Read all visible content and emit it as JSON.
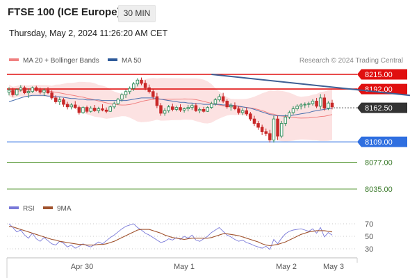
{
  "header": {
    "title": "FTSE 100 (ICE Europe)",
    "timeframe": "30 MIN",
    "datetime": "Thursday, May 2, 2024 11:26:20 AM CET"
  },
  "legend": {
    "items": [
      {
        "label": "MA 20 + Bollinger Bands",
        "color": "#f08080"
      },
      {
        "label": "MA 50",
        "color": "#2e5a9a"
      }
    ],
    "credit": "Research © 2024 Trading Central"
  },
  "rsi_legend": {
    "items": [
      {
        "label": "RSI",
        "color": "#7878d8"
      },
      {
        "label": "9MA",
        "color": "#a0522d"
      }
    ]
  },
  "levels": [
    {
      "value": 8215.0,
      "label": "8215.00",
      "kind": "resistance",
      "color": "#e01010"
    },
    {
      "value": 8192.0,
      "label": "8192.00",
      "kind": "resistance",
      "color": "#e01010"
    },
    {
      "value": 8162.5,
      "label": "8162.50",
      "kind": "current",
      "color": "#333333"
    },
    {
      "value": 8109.0,
      "label": "8109.00",
      "kind": "support",
      "color": "#2f6fe0"
    },
    {
      "value": 8077.0,
      "label": "8077.00",
      "kind": "target",
      "color": "#5a9a3a"
    },
    {
      "value": 8035.0,
      "label": "8035.00",
      "kind": "target",
      "color": "#5a9a3a"
    }
  ],
  "rsi_axis": {
    "ticks": [
      "70",
      "50",
      "30"
    ]
  },
  "x_axis": {
    "labels": [
      "Apr 30",
      "May 1",
      "May 2",
      "May 3"
    ]
  },
  "chart_data": [
    {
      "type": "candlestick",
      "title": "FTSE 100 (ICE Europe)",
      "ylim": [
        8028,
        8228
      ],
      "x_labels": [
        "Apr 30",
        "May 1",
        "May 2",
        "May 3"
      ],
      "ohlc": [
        [
          8187,
          8195,
          8182,
          8190
        ],
        [
          8190,
          8194,
          8180,
          8183
        ],
        [
          8183,
          8193,
          8181,
          8191
        ],
        [
          8191,
          8198,
          8188,
          8194
        ],
        [
          8194,
          8197,
          8184,
          8186
        ],
        [
          8186,
          8193,
          8178,
          8188
        ],
        [
          8188,
          8196,
          8186,
          8194
        ],
        [
          8194,
          8197,
          8188,
          8190
        ],
        [
          8190,
          8194,
          8184,
          8187
        ],
        [
          8187,
          8193,
          8181,
          8190
        ],
        [
          8190,
          8195,
          8184,
          8186
        ],
        [
          8186,
          8190,
          8175,
          8178
        ],
        [
          8178,
          8182,
          8169,
          8172
        ],
        [
          8172,
          8179,
          8167,
          8175
        ],
        [
          8175,
          8178,
          8164,
          8168
        ],
        [
          8168,
          8172,
          8160,
          8164
        ],
        [
          8164,
          8170,
          8160,
          8167
        ],
        [
          8167,
          8173,
          8161,
          8163
        ],
        [
          8163,
          8166,
          8152,
          8155
        ],
        [
          8155,
          8165,
          8153,
          8163
        ],
        [
          8163,
          8166,
          8154,
          8157
        ],
        [
          8157,
          8165,
          8155,
          8162
        ],
        [
          8162,
          8167,
          8156,
          8158
        ],
        [
          8158,
          8164,
          8154,
          8161
        ],
        [
          8161,
          8168,
          8157,
          8159
        ],
        [
          8159,
          8163,
          8154,
          8157
        ],
        [
          8157,
          8166,
          8156,
          8164
        ],
        [
          8164,
          8172,
          8161,
          8169
        ],
        [
          8169,
          8178,
          8167,
          8176
        ],
        [
          8176,
          8186,
          8172,
          8183
        ],
        [
          8183,
          8191,
          8178,
          8188
        ],
        [
          8188,
          8196,
          8184,
          8193
        ],
        [
          8193,
          8203,
          8189,
          8200
        ],
        [
          8200,
          8209,
          8196,
          8206
        ],
        [
          8206,
          8210,
          8198,
          8201
        ],
        [
          8201,
          8206,
          8190,
          8194
        ],
        [
          8194,
          8199,
          8185,
          8188
        ],
        [
          8188,
          8192,
          8176,
          8180
        ],
        [
          8180,
          8186,
          8162,
          8166
        ],
        [
          8166,
          8170,
          8150,
          8154
        ],
        [
          8154,
          8162,
          8150,
          8158
        ],
        [
          8158,
          8167,
          8155,
          8164
        ],
        [
          8164,
          8169,
          8157,
          8160
        ],
        [
          8160,
          8166,
          8157,
          8163
        ],
        [
          8163,
          8168,
          8156,
          8159
        ],
        [
          8159,
          8163,
          8155,
          8161
        ],
        [
          8161,
          8167,
          8157,
          8163
        ],
        [
          8163,
          8169,
          8159,
          8166
        ],
        [
          8166,
          8170,
          8156,
          8158
        ],
        [
          8158,
          8163,
          8154,
          8160
        ],
        [
          8160,
          8164,
          8155,
          8157
        ],
        [
          8157,
          8165,
          8156,
          8163
        ],
        [
          8163,
          8172,
          8161,
          8169
        ],
        [
          8169,
          8178,
          8166,
          8175
        ],
        [
          8175,
          8184,
          8172,
          8180
        ],
        [
          8180,
          8186,
          8170,
          8173
        ],
        [
          8173,
          8176,
          8161,
          8164
        ],
        [
          8164,
          8170,
          8158,
          8166
        ],
        [
          8166,
          8171,
          8159,
          8161
        ],
        [
          8161,
          8165,
          8152,
          8155
        ],
        [
          8155,
          8162,
          8151,
          8158
        ],
        [
          8158,
          8163,
          8150,
          8153
        ],
        [
          8153,
          8156,
          8142,
          8145
        ],
        [
          8145,
          8150,
          8134,
          8138
        ],
        [
          8138,
          8142,
          8128,
          8132
        ],
        [
          8132,
          8136,
          8120,
          8125
        ],
        [
          8125,
          8130,
          8118,
          8122
        ],
        [
          8122,
          8128,
          8108,
          8112
        ],
        [
          8112,
          8150,
          8108,
          8145
        ],
        [
          8145,
          8150,
          8112,
          8118
        ],
        [
          8118,
          8142,
          8115,
          8138
        ],
        [
          8138,
          8152,
          8134,
          8148
        ],
        [
          8148,
          8158,
          8145,
          8155
        ],
        [
          8155,
          8165,
          8152,
          8161
        ],
        [
          8161,
          8168,
          8158,
          8165
        ],
        [
          8165,
          8170,
          8160,
          8167
        ],
        [
          8167,
          8171,
          8162,
          8168
        ],
        [
          8168,
          8172,
          8163,
          8169
        ],
        [
          8169,
          8176,
          8166,
          8173
        ],
        [
          8173,
          8178,
          8162,
          8165
        ],
        [
          8165,
          8184,
          8160,
          8178
        ],
        [
          8178,
          8184,
          8158,
          8162
        ],
        [
          8162,
          8173,
          8159,
          8170
        ],
        [
          8170,
          8175,
          8160,
          8164
        ]
      ],
      "ma50": [
        8172,
        8174,
        8176,
        8178,
        8180,
        8181,
        8182,
        8182,
        8182,
        8182,
        8181,
        8181,
        8180,
        8180,
        8179,
        8178,
        8177,
        8177,
        8176,
        8176,
        8175,
        8175,
        8175,
        8175,
        8174,
        8174,
        8174,
        8174,
        8174,
        8174,
        8174,
        8175,
        8176,
        8177,
        8178,
        8178,
        8178,
        8178,
        8177,
        8176,
        8175,
        8174,
        8173,
        8172,
        8171,
        8171,
        8170,
        8170,
        8169,
        8169,
        8168,
        8168,
        8168,
        8168,
        8168,
        8167,
        8167,
        8167,
        8166,
        8165,
        8164,
        8163,
        8162,
        8160,
        8158,
        8156,
        8154,
        8152,
        8151,
        8150,
        8150,
        8150,
        8150,
        8151,
        8152,
        8153,
        8154,
        8155,
        8157,
        8158,
        8159,
        8160,
        8161,
        8162
      ],
      "trendline": {
        "x": [
          52,
          134
        ],
        "y": [
          8215,
          8162
        ]
      },
      "forecast_arrow": {
        "x": [
          134,
          142
        ],
        "y": [
          8166,
          8210
        ]
      }
    },
    {
      "type": "line",
      "title": "RSI",
      "ylim": [
        20,
        80
      ],
      "yticks": [
        70,
        50,
        30
      ],
      "series": [
        {
          "name": "RSI",
          "values": [
            70,
            64,
            57,
            60,
            52,
            47,
            55,
            46,
            42,
            48,
            43,
            38,
            36,
            42,
            39,
            33,
            36,
            31,
            34,
            38,
            35,
            33,
            37,
            41,
            38,
            43,
            48,
            52,
            57,
            62,
            66,
            68,
            70,
            64,
            60,
            55,
            52,
            48,
            44,
            40,
            42,
            46,
            44,
            48,
            45,
            50,
            47,
            52,
            44,
            42,
            46,
            50,
            56,
            60,
            64,
            58,
            52,
            49,
            45,
            42,
            44,
            40,
            38,
            35,
            33,
            31,
            34,
            29,
            45,
            38,
            47,
            54,
            58,
            60,
            61,
            62,
            60,
            58,
            62,
            55,
            64,
            49,
            56,
            52
          ]
        },
        {
          "name": "9MA",
          "values": [
            66,
            65,
            63,
            61,
            59,
            57,
            55,
            53,
            51,
            49,
            47,
            45,
            44,
            42,
            41,
            40,
            39,
            38,
            37,
            37,
            36,
            36,
            36,
            37,
            37,
            38,
            40,
            42,
            45,
            48,
            51,
            54,
            57,
            60,
            61,
            61,
            61,
            59,
            57,
            55,
            52,
            50,
            48,
            47,
            46,
            45,
            46,
            47,
            47,
            47,
            47,
            47,
            48,
            50,
            52,
            54,
            54,
            53,
            52,
            51,
            49,
            47,
            45,
            43,
            41,
            38,
            36,
            35,
            36,
            37,
            39,
            41,
            44,
            47,
            50,
            53,
            55,
            57,
            58,
            59,
            59,
            59,
            58,
            57
          ]
        }
      ]
    }
  ]
}
